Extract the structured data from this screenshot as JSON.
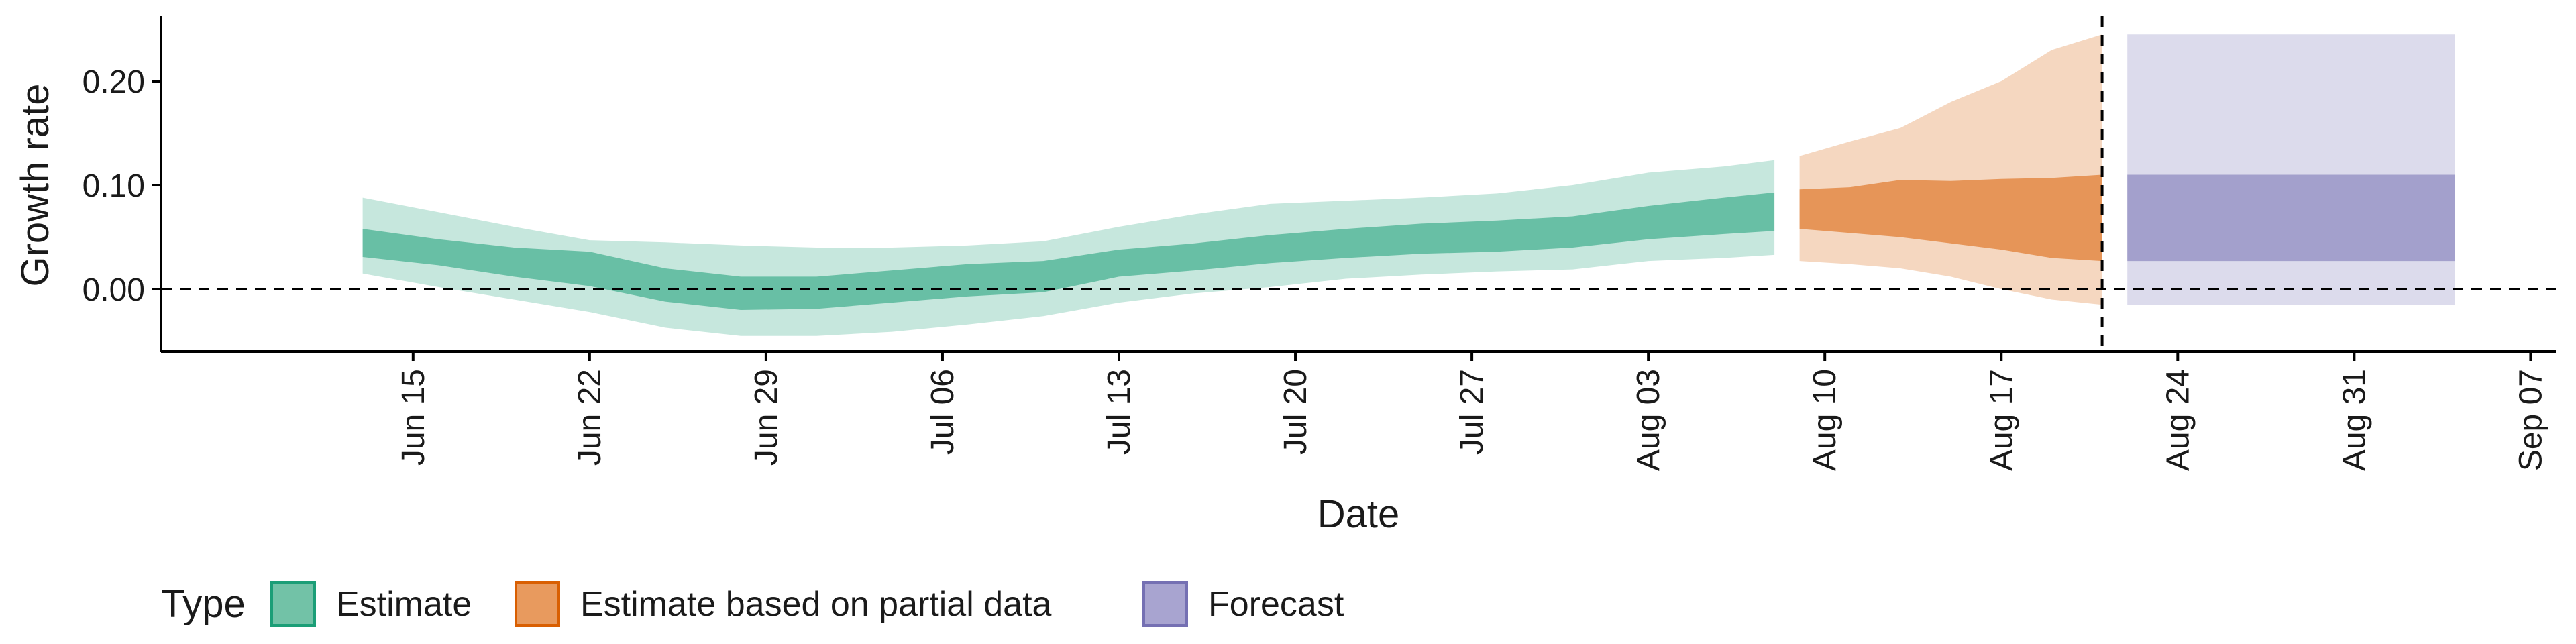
{
  "chart_data": {
    "type": "area",
    "title": "",
    "xlabel": "Date",
    "ylabel": "Growth rate",
    "xlim": [
      "2020-06-05",
      "2020-09-08"
    ],
    "ylim": [
      -0.06,
      0.26
    ],
    "y_ticks": [
      0.0,
      0.1,
      0.2
    ],
    "y_tick_labels": [
      "0.00",
      "0.10",
      "0.20"
    ],
    "x_ticks": [
      "2020-06-15",
      "2020-06-22",
      "2020-06-29",
      "2020-07-06",
      "2020-07-13",
      "2020-07-20",
      "2020-07-27",
      "2020-08-03",
      "2020-08-10",
      "2020-08-17",
      "2020-08-24",
      "2020-08-31",
      "2020-09-07"
    ],
    "x_tick_labels": [
      "Jun 15",
      "Jun 22",
      "Jun 29",
      "Jul 06",
      "Jul 13",
      "Jul 20",
      "Jul 27",
      "Aug 03",
      "Aug 10",
      "Aug 17",
      "Aug 24",
      "Aug 31",
      "Sep 07"
    ],
    "hline": 0.0,
    "vline": "2020-08-21",
    "grid": false,
    "legend_title": "Type",
    "legend_position": "bottom-left",
    "series": [
      {
        "name": "Estimate",
        "color": "#1b9e77",
        "points": [
          {
            "date": "2020-06-13",
            "lower90": 0.015,
            "lower50": 0.031,
            "median": 0.044,
            "upper50": 0.058,
            "upper90": 0.088
          },
          {
            "date": "2020-06-16",
            "lower90": 0.002,
            "lower50": 0.023,
            "median": 0.035,
            "upper50": 0.048,
            "upper90": 0.074
          },
          {
            "date": "2020-06-19",
            "lower90": -0.01,
            "lower50": 0.012,
            "median": 0.025,
            "upper50": 0.04,
            "upper90": 0.06
          },
          {
            "date": "2020-06-22",
            "lower90": -0.022,
            "lower50": 0.003,
            "median": 0.02,
            "upper50": 0.036,
            "upper90": 0.047
          },
          {
            "date": "2020-06-25",
            "lower90": -0.037,
            "lower50": -0.012,
            "median": 0.004,
            "upper50": 0.02,
            "upper90": 0.045
          },
          {
            "date": "2020-06-28",
            "lower90": -0.045,
            "lower50": -0.02,
            "median": -0.004,
            "upper50": 0.012,
            "upper90": 0.042
          },
          {
            "date": "2020-07-01",
            "lower90": -0.045,
            "lower50": -0.019,
            "median": -0.005,
            "upper50": 0.012,
            "upper90": 0.04
          },
          {
            "date": "2020-07-04",
            "lower90": -0.041,
            "lower50": -0.013,
            "median": 0.002,
            "upper50": 0.018,
            "upper90": 0.04
          },
          {
            "date": "2020-07-07",
            "lower90": -0.034,
            "lower50": -0.007,
            "median": 0.008,
            "upper50": 0.024,
            "upper90": 0.042
          },
          {
            "date": "2020-07-10",
            "lower90": -0.026,
            "lower50": -0.003,
            "median": 0.012,
            "upper50": 0.027,
            "upper90": 0.046
          },
          {
            "date": "2020-07-13",
            "lower90": -0.013,
            "lower50": 0.012,
            "median": 0.024,
            "upper50": 0.038,
            "upper90": 0.06
          },
          {
            "date": "2020-07-16",
            "lower90": -0.004,
            "lower50": 0.018,
            "median": 0.031,
            "upper50": 0.044,
            "upper90": 0.072
          },
          {
            "date": "2020-07-19",
            "lower90": 0.002,
            "lower50": 0.025,
            "median": 0.038,
            "upper50": 0.052,
            "upper90": 0.082
          },
          {
            "date": "2020-07-22",
            "lower90": 0.01,
            "lower50": 0.03,
            "median": 0.044,
            "upper50": 0.058,
            "upper90": 0.085
          },
          {
            "date": "2020-07-25",
            "lower90": 0.014,
            "lower50": 0.034,
            "median": 0.048,
            "upper50": 0.063,
            "upper90": 0.088
          },
          {
            "date": "2020-07-28",
            "lower90": 0.017,
            "lower50": 0.036,
            "median": 0.051,
            "upper50": 0.066,
            "upper90": 0.092
          },
          {
            "date": "2020-07-31",
            "lower90": 0.019,
            "lower50": 0.04,
            "median": 0.055,
            "upper50": 0.07,
            "upper90": 0.1
          },
          {
            "date": "2020-08-03",
            "lower90": 0.027,
            "lower50": 0.048,
            "median": 0.063,
            "upper50": 0.08,
            "upper90": 0.112
          },
          {
            "date": "2020-08-06",
            "lower90": 0.03,
            "lower50": 0.053,
            "median": 0.068,
            "upper50": 0.088,
            "upper90": 0.118
          },
          {
            "date": "2020-08-08",
            "lower90": 0.033,
            "lower50": 0.056,
            "median": 0.072,
            "upper50": 0.093,
            "upper90": 0.124
          }
        ]
      },
      {
        "name": "Estimate based on partial data",
        "color": "#d95f02",
        "points": [
          {
            "date": "2020-08-09",
            "lower90": 0.027,
            "lower50": 0.058,
            "median": 0.077,
            "upper50": 0.096,
            "upper90": 0.128
          },
          {
            "date": "2020-08-11",
            "lower90": 0.024,
            "lower50": 0.054,
            "median": 0.074,
            "upper50": 0.098,
            "upper90": 0.142
          },
          {
            "date": "2020-08-13",
            "lower90": 0.02,
            "lower50": 0.05,
            "median": 0.075,
            "upper50": 0.105,
            "upper90": 0.155
          },
          {
            "date": "2020-08-15",
            "lower90": 0.012,
            "lower50": 0.044,
            "median": 0.073,
            "upper50": 0.104,
            "upper90": 0.18
          },
          {
            "date": "2020-08-17",
            "lower90": 0.0,
            "lower50": 0.038,
            "median": 0.07,
            "upper50": 0.106,
            "upper90": 0.2
          },
          {
            "date": "2020-08-19",
            "lower90": -0.01,
            "lower50": 0.03,
            "median": 0.068,
            "upper50": 0.107,
            "upper90": 0.23
          },
          {
            "date": "2020-08-21",
            "lower90": -0.015,
            "lower50": 0.027,
            "median": 0.068,
            "upper50": 0.11,
            "upper90": 0.245
          }
        ]
      },
      {
        "name": "Forecast",
        "color": "#7570b3",
        "points": [
          {
            "date": "2020-08-22",
            "lower90": -0.015,
            "lower50": 0.027,
            "median": 0.068,
            "upper50": 0.11,
            "upper90": 0.245
          },
          {
            "date": "2020-09-04",
            "lower90": -0.015,
            "lower50": 0.027,
            "median": 0.068,
            "upper50": 0.11,
            "upper90": 0.245
          }
        ]
      }
    ],
    "legend": [
      {
        "label": "Estimate",
        "fill": "#72c2a7",
        "border": "#1b9e77"
      },
      {
        "label": "Estimate based on partial data",
        "fill": "#e89a5e",
        "border": "#d95f02"
      },
      {
        "label": "Forecast",
        "fill": "#a8a4d0",
        "border": "#7570b3"
      }
    ]
  }
}
